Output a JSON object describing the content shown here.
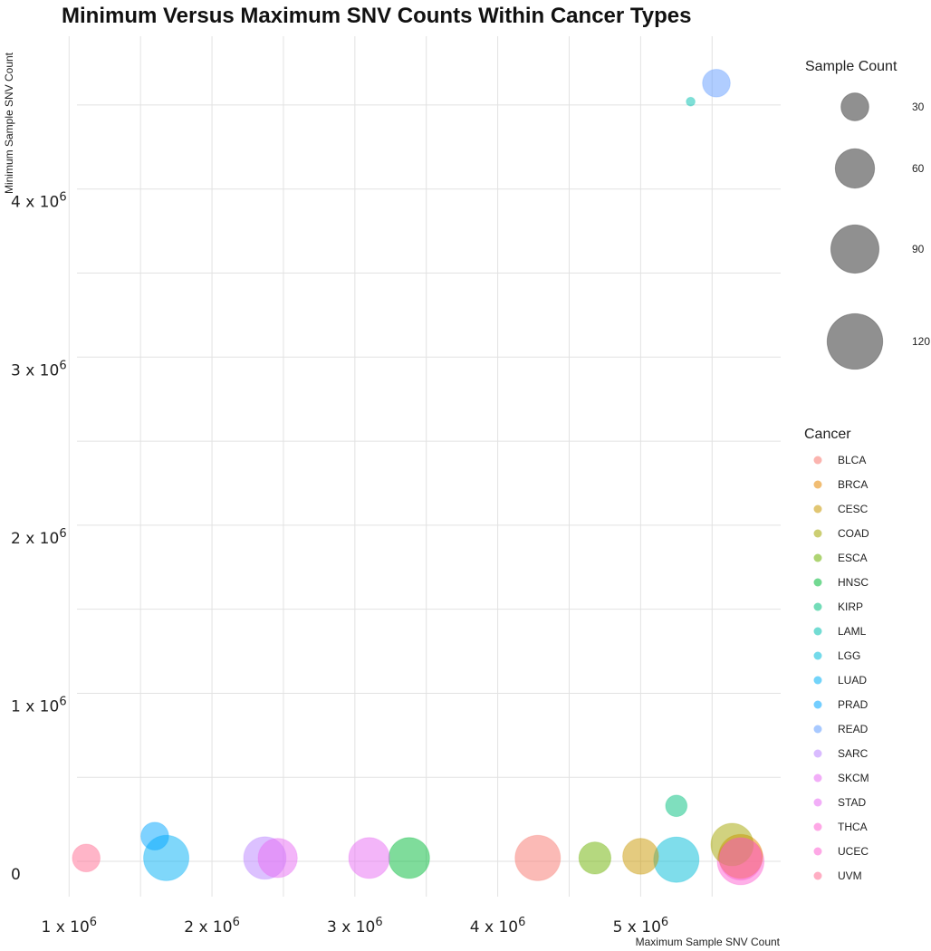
{
  "chart_data": {
    "type": "scatter",
    "title": "Minimum Versus Maximum SNV Counts Within Cancer Types",
    "xlabel": "Maximum Sample SNV Count",
    "ylabel": "Minimum Sample SNV Count",
    "x_tick_values": [
      1000000,
      2000000,
      3000000,
      4000000,
      5000000
    ],
    "x_tick_labels": [
      "1 x 10^6",
      "2 x 10^6",
      "3 x 10^6",
      "4 x 10^6",
      "5 x 10^6"
    ],
    "y_tick_values": [
      0,
      1000000,
      2000000,
      3000000,
      4000000
    ],
    "y_tick_labels": [
      "0",
      "1 x 10^6",
      "2 x 10^6",
      "3 x 10^6",
      "4 x 10^6"
    ],
    "xlim": [
      770000,
      5980000
    ],
    "ylim": [
      -210000,
      4990000
    ],
    "grid": true,
    "size_legend": {
      "title": "Sample Count",
      "values": [
        30,
        60,
        90,
        120
      ],
      "labels": [
        "30",
        "60",
        "90",
        "120"
      ]
    },
    "color_legend": {
      "title": "Cancer",
      "placement": "right"
    },
    "series": [
      {
        "name": "BLCA",
        "color": "#F8766D",
        "points": [
          {
            "x": 4280000,
            "y": 20000,
            "size": 80
          }
        ]
      },
      {
        "name": "BRCA",
        "color": "#E58700",
        "points": [
          {
            "x": 5700000,
            "y": 30000,
            "size": 75
          }
        ]
      },
      {
        "name": "CESC",
        "color": "#C99800",
        "points": [
          {
            "x": 5000000,
            "y": 30000,
            "size": 50
          }
        ]
      },
      {
        "name": "COAD",
        "color": "#A3A500",
        "points": [
          {
            "x": 5640000,
            "y": 100000,
            "size": 70
          }
        ]
      },
      {
        "name": "ESCA",
        "color": "#6BB100",
        "points": [
          {
            "x": 4680000,
            "y": 20000,
            "size": 40
          }
        ]
      },
      {
        "name": "HNSC",
        "color": "#00BA38",
        "points": [
          {
            "x": 3380000,
            "y": 20000,
            "size": 65
          }
        ]
      },
      {
        "name": "KIRP",
        "color": "#00BF7D",
        "points": [
          {
            "x": 5250000,
            "y": 330000,
            "size": 18
          }
        ]
      },
      {
        "name": "LAML",
        "color": "#00C0AF",
        "points": [
          {
            "x": 5350000,
            "y": 4520000,
            "size": 3
          }
        ]
      },
      {
        "name": "LGG",
        "color": "#00BCD8",
        "points": [
          {
            "x": 5250000,
            "y": 10000,
            "size": 80
          }
        ]
      },
      {
        "name": "LUAD",
        "color": "#00B0F6",
        "points": [
          {
            "x": 1680000,
            "y": 20000,
            "size": 80
          }
        ]
      },
      {
        "name": "PRAD",
        "color": "#00A5FF",
        "points": [
          {
            "x": 1600000,
            "y": 150000,
            "size": 30
          }
        ]
      },
      {
        "name": "READ",
        "color": "#619CFF",
        "points": [
          {
            "x": 5530000,
            "y": 4630000,
            "size": 30
          }
        ]
      },
      {
        "name": "SARC",
        "color": "#B983FF",
        "points": [
          {
            "x": 2370000,
            "y": 20000,
            "size": 70
          }
        ]
      },
      {
        "name": "SKCM",
        "color": "#E76BF3",
        "points": [
          {
            "x": 3100000,
            "y": 20000,
            "size": 65
          }
        ]
      },
      {
        "name": "STAD",
        "color": "#E76BF3",
        "points": [
          {
            "x": 2460000,
            "y": 20000,
            "size": 60
          }
        ]
      },
      {
        "name": "THCA",
        "color": "#FD61D1",
        "points": [
          {
            "x": 5700000,
            "y": 0,
            "size": 85
          }
        ]
      },
      {
        "name": "UCEC",
        "color": "#FD61D1",
        "points": [
          {
            "x": 5700000,
            "y": 15000,
            "size": 70
          }
        ]
      },
      {
        "name": "UVM",
        "color": "#FF6C91",
        "points": [
          {
            "x": 1120000,
            "y": 20000,
            "size": 30
          }
        ]
      }
    ]
  }
}
